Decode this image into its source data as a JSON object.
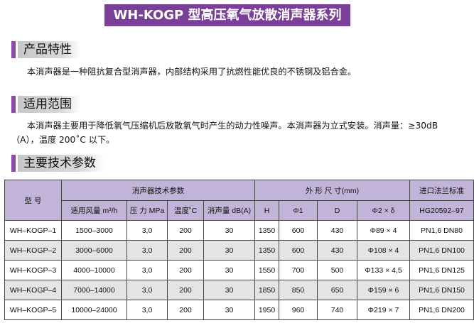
{
  "title": "WH-KOGP 型高压氧气放散消声器系列",
  "sections": {
    "features": {
      "heading": "产品特性",
      "text": "本消声器是一种阻抗复合型消声器，内部结构采用了抗燃性能优良的不锈钢及铝合金。"
    },
    "scope": {
      "heading": "适用范围",
      "text": "本消声器主要用于降低氧气压缩机后放散氧气时产生的动力性噪声。本消声器为立式安装。消声量：≥30dB（A），温度 200˚C 以下。"
    },
    "specs": {
      "heading": "主要技术参数"
    }
  },
  "table": {
    "header_model": "型 号",
    "header_group_silencer": "消声器技术参数",
    "header_group_dims": "外  形  尺  寸(mm)",
    "header_group_flange": "进口法兰标准",
    "sub_headers": {
      "flow": "适用风量 m³/h",
      "pressure": "压 力 MPa",
      "temp": "温度˚C",
      "attenuation": "消声量 dB(A)",
      "h": "H",
      "phi1": "Φ1",
      "d": "D",
      "phi2": "Φ2 × δ",
      "flange": "HG20592–97"
    },
    "rows": [
      {
        "model": "WH–KOGP–1",
        "flow": "1500–3000",
        "pressure": "3,0",
        "temp": "200",
        "attenuation": "30",
        "h": "1350",
        "phi1": "600",
        "d": "430",
        "phi2": "Φ89 × 4",
        "flange": "PN1,6  DN80"
      },
      {
        "model": "WH–KOGP–2",
        "flow": "3000–6000",
        "pressure": "3,0",
        "temp": "200",
        "attenuation": "30",
        "h": "1350",
        "phi1": "600",
        "d": "430",
        "phi2": "Φ108 × 4",
        "flange": "PN1,6  DN100"
      },
      {
        "model": "WH–KOGP–3",
        "flow": "4000–10000",
        "pressure": "3,0",
        "temp": "200",
        "attenuation": "30",
        "h": "1550",
        "phi1": "700",
        "d": "500",
        "phi2": "Φ133 × 4,5",
        "flange": "PN1,6  DN125"
      },
      {
        "model": "WH–KOGP–4",
        "flow": "7000–14000",
        "pressure": "3,0",
        "temp": "200",
        "attenuation": "30",
        "h": "1850",
        "phi1": "850",
        "d": "650",
        "phi2": "Φ159 × 6",
        "flange": "PN1,6  DN150"
      },
      {
        "model": "WH–KOGP–5",
        "flow": "10000–24000",
        "pressure": "3,0",
        "temp": "200",
        "attenuation": "30",
        "h": "1950",
        "phi1": "960",
        "d": "740",
        "phi2": "Φ219 × 7",
        "flange": "PN1,6  DN200"
      }
    ]
  },
  "colors": {
    "banner": "#7a3f96",
    "section_bar": "#8a4aa6",
    "table_header": "#c2b3d9",
    "row_shade": "#e4e4e4"
  }
}
